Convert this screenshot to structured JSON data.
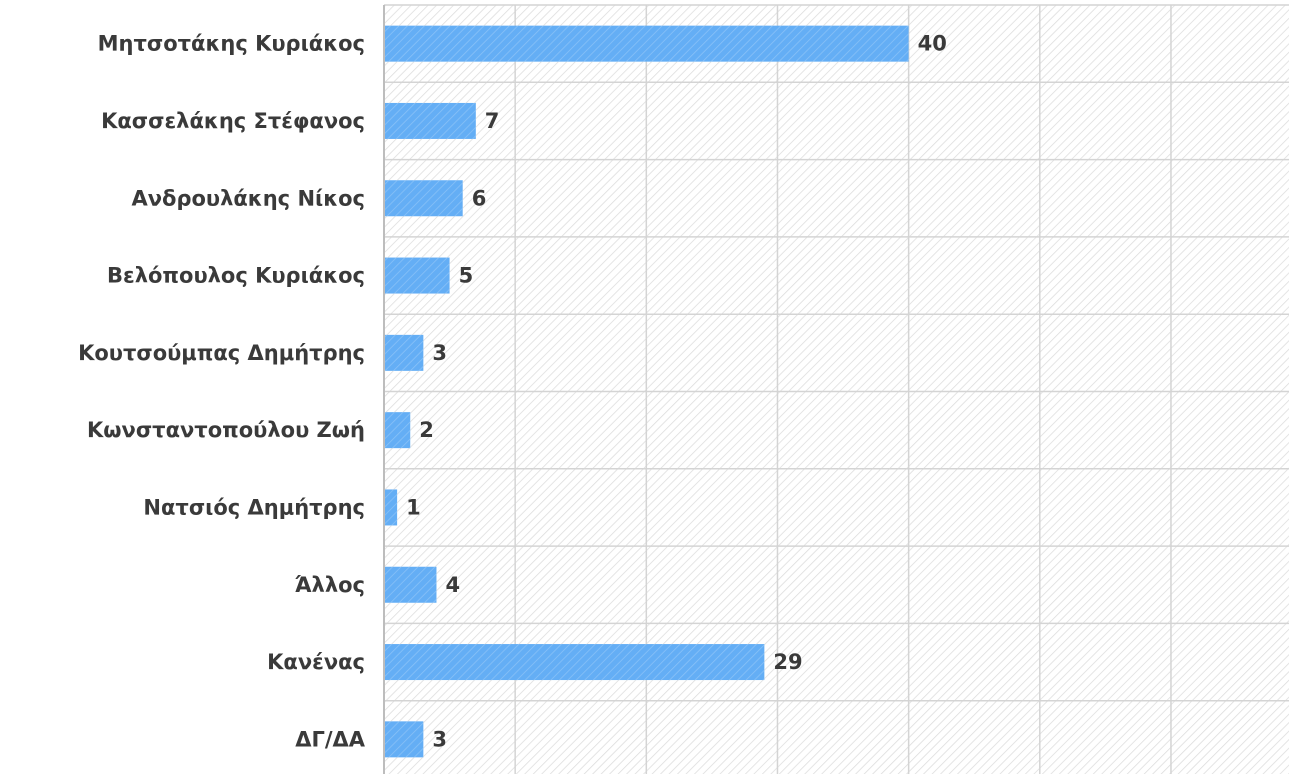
{
  "chart_data": {
    "type": "bar",
    "orientation": "horizontal",
    "categories": [
      "Μητσοτάκης Κυριάκος",
      "Κασσελάκης Στέφανος",
      "Ανδρουλάκης Νίκος",
      "Βελόπουλος Κυριάκος",
      "Κουτσούμπας Δημήτρης",
      "Κωνσταντοπούλου Ζωή",
      "Νατσιός Δημήτρης",
      "Άλλος",
      "Κανένας",
      "ΔΓ/ΔΑ"
    ],
    "values": [
      40,
      7,
      6,
      5,
      3,
      2,
      1,
      4,
      29,
      3
    ],
    "color": "#64aef5",
    "xlim": [
      0,
      69
    ],
    "xticks": [
      0,
      10,
      20,
      30,
      40,
      50,
      60
    ],
    "grid": true
  }
}
